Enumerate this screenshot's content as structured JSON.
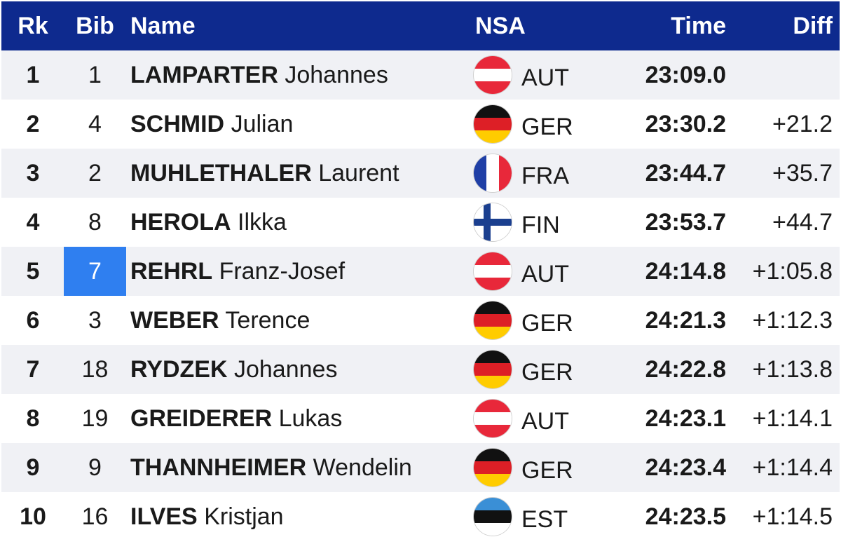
{
  "header": {
    "rank": "Rk",
    "bib": "Bib",
    "name": "Name",
    "nsa": "NSA",
    "time": "Time",
    "diff": "Diff"
  },
  "colors": {
    "header_bg": "#0e2a8e",
    "selected_cell": "#2f7ff0",
    "alt_row": "#f0f1f5"
  },
  "rows": [
    {
      "rank": "1",
      "bib": "1",
      "last": "LAMPARTER",
      "first": "Johannes",
      "nsa": "AUT",
      "flag": "aut-flag-icon",
      "time": "23:09.0",
      "diff": ""
    },
    {
      "rank": "2",
      "bib": "4",
      "last": "SCHMID",
      "first": "Julian",
      "nsa": "GER",
      "flag": "ger-flag-icon",
      "time": "23:30.2",
      "diff": "+21.2"
    },
    {
      "rank": "3",
      "bib": "2",
      "last": "MUHLETHALER",
      "first": "Laurent",
      "nsa": "FRA",
      "flag": "fra-flag-icon",
      "time": "23:44.7",
      "diff": "+35.7"
    },
    {
      "rank": "4",
      "bib": "8",
      "last": "HEROLA",
      "first": "Ilkka",
      "nsa": "FIN",
      "flag": "fin-flag-icon",
      "time": "23:53.7",
      "diff": "+44.7"
    },
    {
      "rank": "5",
      "bib": "7",
      "last": "REHRL",
      "first": "Franz-Josef",
      "nsa": "AUT",
      "flag": "aut-flag-icon",
      "time": "24:14.8",
      "diff": "+1:05.8",
      "selected": true
    },
    {
      "rank": "6",
      "bib": "3",
      "last": "WEBER",
      "first": "Terence",
      "nsa": "GER",
      "flag": "ger-flag-icon",
      "time": "24:21.3",
      "diff": "+1:12.3"
    },
    {
      "rank": "7",
      "bib": "18",
      "last": "RYDZEK",
      "first": "Johannes",
      "nsa": "GER",
      "flag": "ger-flag-icon",
      "time": "24:22.8",
      "diff": "+1:13.8"
    },
    {
      "rank": "8",
      "bib": "19",
      "last": "GREIDERER",
      "first": "Lukas",
      "nsa": "AUT",
      "flag": "aut-flag-icon",
      "time": "24:23.1",
      "diff": "+1:14.1"
    },
    {
      "rank": "9",
      "bib": "9",
      "last": "THANNHEIMER",
      "first": "Wendelin",
      "nsa": "GER",
      "flag": "ger-flag-icon",
      "time": "24:23.4",
      "diff": "+1:14.4"
    },
    {
      "rank": "10",
      "bib": "16",
      "last": "ILVES",
      "first": "Kristjan",
      "nsa": "EST",
      "flag": "est-flag-icon",
      "time": "24:23.5",
      "diff": "+1:14.5"
    }
  ]
}
